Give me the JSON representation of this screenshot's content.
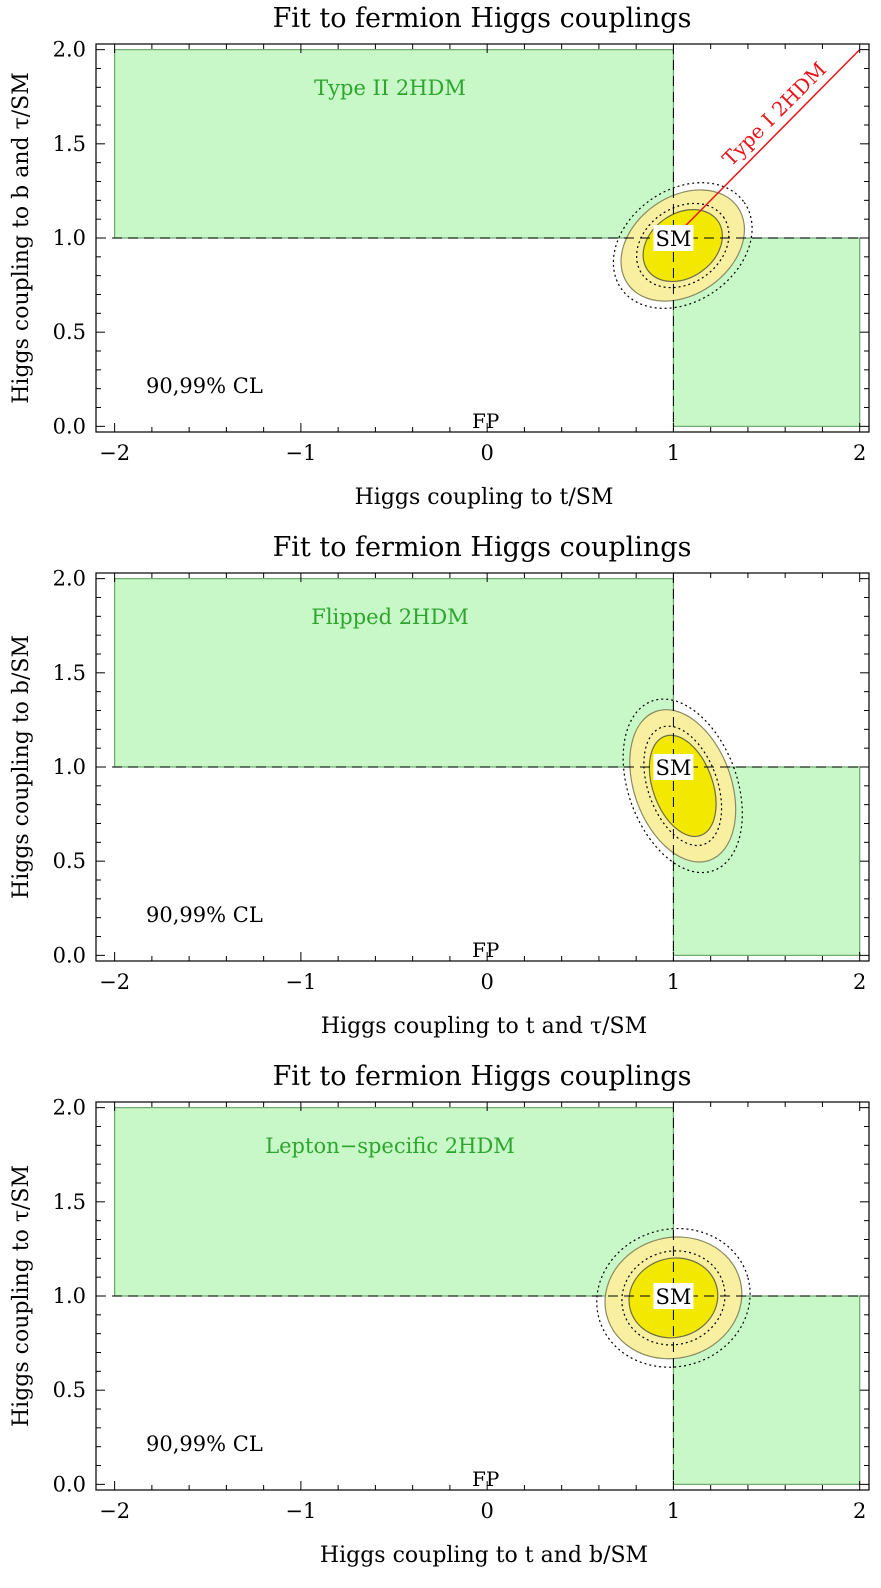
{
  "colors": {
    "region_fill": "#c8f8c8",
    "region_stroke": "#6aa86a",
    "region_label": "#2ea52e",
    "ellipse_inner": "#f2e800",
    "ellipse_outer": "#f8f0a0",
    "type1_line": "#e8141a",
    "axis": "#000000"
  },
  "panels": [
    {
      "title": "Fit to fermion Higgs couplings",
      "xlabel": "Higgs coupling to t/SM",
      "ylabel": "Higgs coupling to b and τ/SM",
      "model_label": "Type II 2HDM",
      "line_label": "Type I 2HDM",
      "cl_label": "90,99% CL",
      "sm_label": "SM",
      "fp_label": "FP",
      "x_ticks": [
        "−2",
        "−1",
        "0",
        "1",
        "2"
      ],
      "y_ticks": [
        "0.0",
        "0.5",
        "1.0",
        "1.5",
        "2.0"
      ]
    },
    {
      "title": "Fit to fermion Higgs couplings",
      "xlabel": "Higgs coupling to t and τ/SM",
      "ylabel": "Higgs coupling to b/SM",
      "model_label": "Flipped 2HDM",
      "cl_label": "90,99% CL",
      "sm_label": "SM",
      "fp_label": "FP",
      "x_ticks": [
        "−2",
        "−1",
        "0",
        "1",
        "2"
      ],
      "y_ticks": [
        "0.0",
        "0.5",
        "1.0",
        "1.5",
        "2.0"
      ]
    },
    {
      "title": "Fit to fermion Higgs couplings",
      "xlabel": "Higgs coupling to t and b/SM",
      "ylabel": "Higgs coupling to τ/SM",
      "model_label": "Lepton−specific 2HDM",
      "cl_label": "90,99% CL",
      "sm_label": "SM",
      "fp_label": "FP",
      "x_ticks": [
        "−2",
        "−1",
        "0",
        "1",
        "2"
      ],
      "y_ticks": [
        "0.0",
        "0.5",
        "1.0",
        "1.5",
        "2.0"
      ]
    }
  ],
  "chart_data": [
    {
      "type": "contour",
      "title": "Fit to fermion Higgs couplings",
      "xlabel": "Higgs coupling to t/SM",
      "ylabel": "Higgs coupling to b and τ/SM",
      "xlim": [
        -2.1,
        2.05
      ],
      "ylim": [
        -0.03,
        2.03
      ],
      "x_ticks": [
        -2,
        -1,
        0,
        1,
        2
      ],
      "y_ticks": [
        0.0,
        0.5,
        1.0,
        1.5,
        2.0
      ],
      "regions": [
        {
          "x": [
            -2,
            1
          ],
          "y": [
            1,
            2
          ]
        },
        {
          "x": [
            1,
            2
          ],
          "y": [
            0,
            1
          ]
        }
      ],
      "dashed_lines": {
        "x": 1,
        "y": 1
      },
      "line": {
        "name": "Type I 2HDM",
        "from": [
          1,
          1
        ],
        "to": [
          2,
          2
        ]
      },
      "sm_point": [
        1,
        1
      ],
      "contours": {
        "center": [
          1.05,
          0.96
        ],
        "semi_axes_90": [
          0.23,
          0.17
        ],
        "semi_axes_99": [
          0.36,
          0.26
        ],
        "rotation_deg": 35
      },
      "cl": "90,99% CL"
    },
    {
      "type": "contour",
      "title": "Fit to fermion Higgs couplings",
      "xlabel": "Higgs coupling to t and τ/SM",
      "ylabel": "Higgs coupling to b/SM",
      "xlim": [
        -2.1,
        2.05
      ],
      "ylim": [
        -0.03,
        2.03
      ],
      "x_ticks": [
        -2,
        -1,
        0,
        1,
        2
      ],
      "y_ticks": [
        0.0,
        0.5,
        1.0,
        1.5,
        2.0
      ],
      "regions": [
        {
          "x": [
            -2,
            1
          ],
          "y": [
            1,
            2
          ]
        },
        {
          "x": [
            1,
            2
          ],
          "y": [
            0,
            1
          ]
        }
      ],
      "dashed_lines": {
        "x": 1,
        "y": 1
      },
      "sm_point": [
        1,
        1
      ],
      "contours": {
        "center": [
          1.05,
          0.9
        ],
        "semi_axes_90": [
          0.16,
          0.28
        ],
        "semi_axes_99": [
          0.26,
          0.42
        ],
        "rotation_deg": 20
      },
      "cl": "90,99% CL"
    },
    {
      "type": "contour",
      "title": "Fit to fermion Higgs couplings",
      "xlabel": "Higgs coupling to t and b/SM",
      "ylabel": "Higgs coupling to τ/SM",
      "xlim": [
        -2.1,
        2.05
      ],
      "ylim": [
        -0.03,
        2.03
      ],
      "x_ticks": [
        -2,
        -1,
        0,
        1,
        2
      ],
      "y_ticks": [
        0.0,
        0.5,
        1.0,
        1.5,
        2.0
      ],
      "regions": [
        {
          "x": [
            -2,
            1
          ],
          "y": [
            1,
            2
          ]
        },
        {
          "x": [
            1,
            2
          ],
          "y": [
            0,
            1
          ]
        }
      ],
      "dashed_lines": {
        "x": 1,
        "y": 1
      },
      "sm_point": [
        1,
        1
      ],
      "contours": {
        "center": [
          1.0,
          0.99
        ],
        "semi_axes_90": [
          0.24,
          0.21
        ],
        "semi_axes_99": [
          0.37,
          0.32
        ],
        "rotation_deg": 15
      },
      "cl": "90,99% CL"
    }
  ]
}
